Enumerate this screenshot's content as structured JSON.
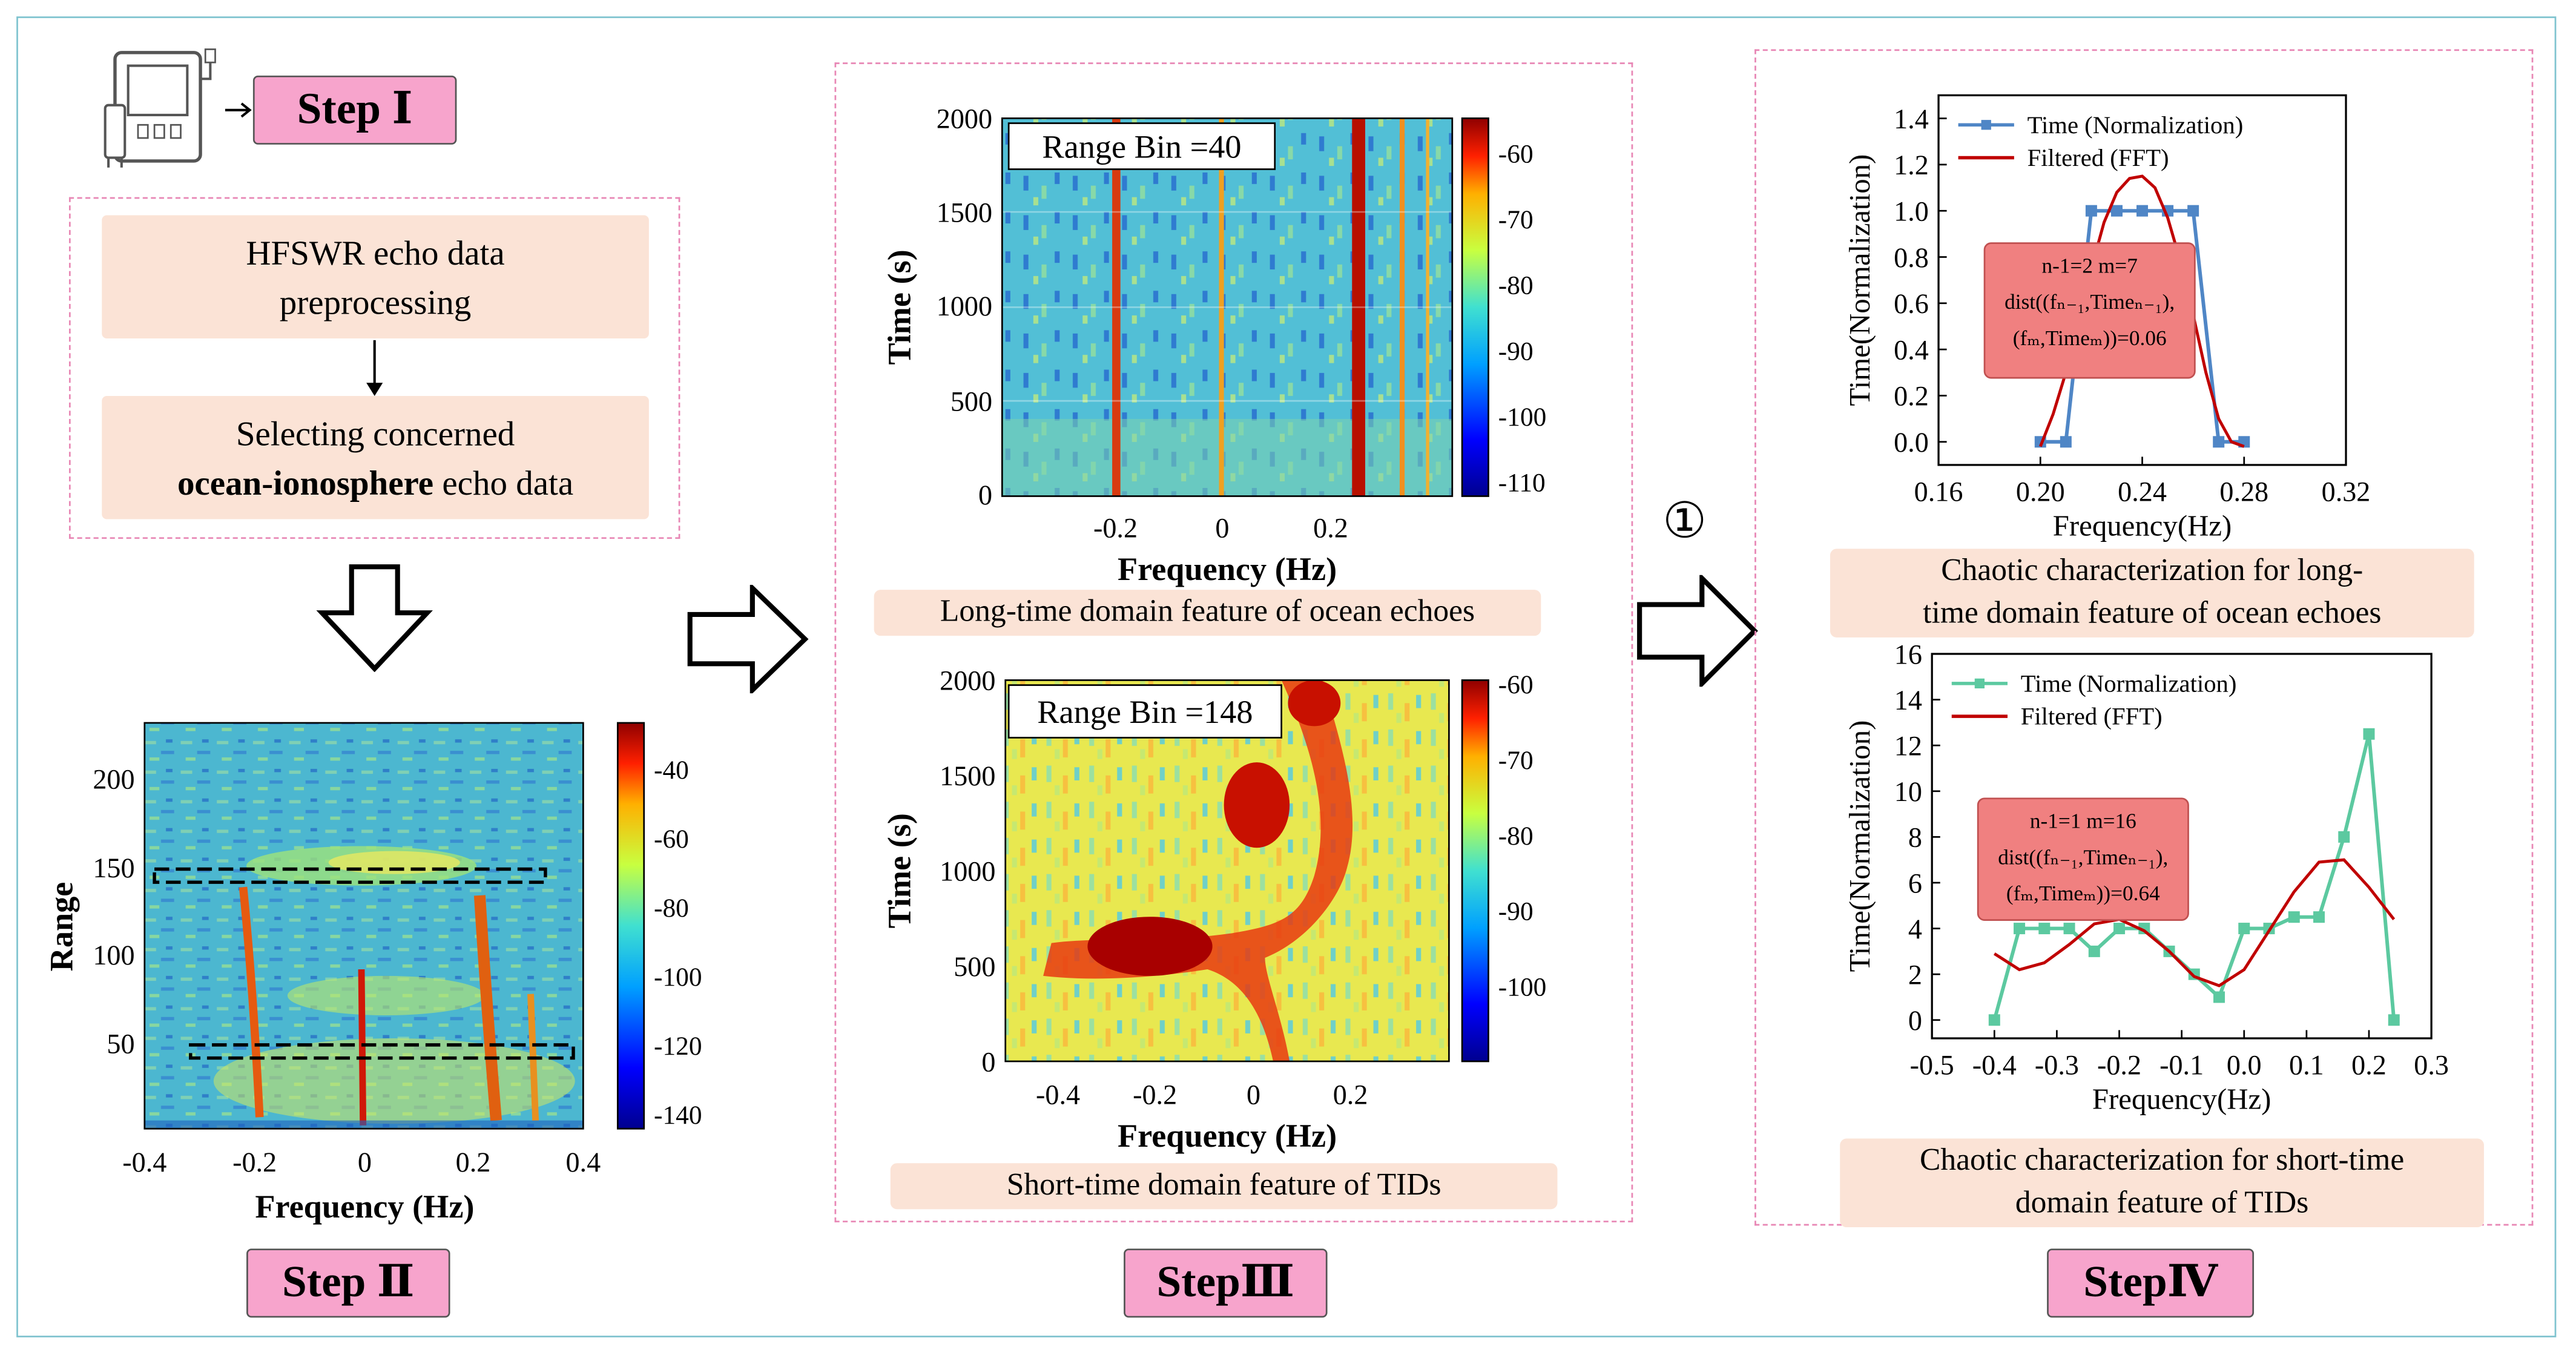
{
  "step1": {
    "label": "Step Ⅰ"
  },
  "step2": {
    "label": "Step Ⅱ"
  },
  "step3": {
    "label": "StepⅢ"
  },
  "step4": {
    "label": "StepⅣ"
  },
  "preprocess": {
    "box1": {
      "line1": "HFSWR echo data",
      "line2": "preprocessing"
    },
    "box2": {
      "line1": "Selecting concerned",
      "line2_bold": "ocean-ionosphere",
      "line2_rest": " echo data"
    }
  },
  "circled_marker": "①",
  "colors": {
    "pink_step": "#f7a4cc",
    "peach": "#fbe3d6",
    "dash": "#e887b5",
    "blue_series": "#4f86c6",
    "green_series": "#5cc9a0",
    "red_fit": "#c00000"
  },
  "icons": {
    "device": "radar-device-icon",
    "arrow": "arrow-right-icon"
  },
  "range_map": {
    "xlabel": "Frequency (Hz)",
    "ylabel": "Range",
    "xticks": [
      "-0.4",
      "-0.2",
      "0",
      "0.2",
      "0.4"
    ],
    "yticks": [
      "50",
      "100",
      "150",
      "200"
    ],
    "colorbar_ticks": [
      "-40",
      "-60",
      "-80",
      "-100",
      "-120",
      "-140"
    ]
  },
  "stft_ocean": {
    "title": "Range Bin =40",
    "xlabel": "Frequency (Hz)",
    "ylabel": "Time (s)",
    "xticks": [
      "-0.2",
      "0",
      "0.2"
    ],
    "yticks": [
      "0",
      "500",
      "1000",
      "1500",
      "2000"
    ],
    "colorbar_ticks": [
      "-60",
      "-70",
      "-80",
      "-90",
      "-100",
      "-110"
    ],
    "caption": "Long-time domain feature of ocean echoes"
  },
  "stft_tid": {
    "title": "Range Bin =148",
    "xlabel": "Frequency (Hz)",
    "ylabel": "Time (s)",
    "xticks": [
      "-0.4",
      "-0.2",
      "0",
      "0.2"
    ],
    "yticks": [
      "0",
      "500",
      "1000",
      "1500",
      "2000"
    ],
    "colorbar_ticks": [
      "-60",
      "-70",
      "-80",
      "-90",
      "-100"
    ],
    "caption": "Short-time domain feature of TIDs"
  },
  "chart_data": [
    {
      "type": "line",
      "id": "ocean_chaos",
      "xlabel": "Frequency(Hz)",
      "ylabel": "Time(Normalization)",
      "xlim": [
        0.16,
        0.32
      ],
      "ylim": [
        -0.1,
        1.5
      ],
      "xticks": [
        "0.16",
        "0.20",
        "0.24",
        "0.28",
        "0.32"
      ],
      "yticks": [
        "0.0",
        "0.2",
        "0.4",
        "0.6",
        "0.8",
        "1.0",
        "1.2",
        "1.4"
      ],
      "legend_position": "top-left",
      "series": [
        {
          "name": "Time (Normalization)",
          "x": [
            0.2,
            0.21,
            0.22,
            0.23,
            0.24,
            0.25,
            0.26,
            0.27,
            0.28
          ],
          "values": [
            0,
            0,
            1,
            1,
            1,
            1,
            1,
            0,
            0
          ]
        },
        {
          "name": "Filtered (FFT)",
          "x": [
            0.2,
            0.205,
            0.21,
            0.215,
            0.22,
            0.225,
            0.23,
            0.235,
            0.24,
            0.245,
            0.25,
            0.255,
            0.26,
            0.265,
            0.27,
            0.275,
            0.28
          ],
          "values": [
            -0.02,
            0.12,
            0.3,
            0.52,
            0.75,
            0.95,
            1.08,
            1.14,
            1.15,
            1.1,
            0.97,
            0.78,
            0.55,
            0.3,
            0.1,
            0.0,
            -0.02
          ]
        }
      ],
      "annotation": {
        "line1": "n-1=2  m=7",
        "line2": "dist((fₙ₋₁,Timeₙ₋₁),",
        "line3": "(fₘ,Timeₘ))=0.06"
      },
      "caption": {
        "line1": "Chaotic characterization for long-",
        "line2": "time domain feature of ocean echoes"
      }
    },
    {
      "type": "line",
      "id": "tid_chaos",
      "xlabel": "Frequency(Hz)",
      "ylabel": "Time(Normalization)",
      "xlim": [
        -0.5,
        0.3
      ],
      "ylim": [
        -0.8,
        16
      ],
      "xticks": [
        "-0.5",
        "-0.4",
        "-0.3",
        "-0.2",
        "-0.1",
        "0.0",
        "0.1",
        "0.2",
        "0.3"
      ],
      "yticks": [
        "0",
        "2",
        "4",
        "6",
        "8",
        "10",
        "12",
        "14",
        "16"
      ],
      "legend_position": "top-left",
      "series": [
        {
          "name": "Time (Normalization)",
          "x": [
            -0.4,
            -0.36,
            -0.32,
            -0.28,
            -0.24,
            -0.2,
            -0.16,
            -0.12,
            -0.08,
            -0.04,
            0.0,
            0.04,
            0.08,
            0.12,
            0.16,
            0.2,
            0.24
          ],
          "values": [
            0,
            4,
            4,
            4,
            3,
            4,
            4,
            3,
            2,
            1,
            4,
            4,
            4.5,
            4.5,
            8,
            12.5,
            0
          ]
        },
        {
          "name": "Filtered (FFT)",
          "x": [
            -0.4,
            -0.36,
            -0.32,
            -0.28,
            -0.24,
            -0.2,
            -0.16,
            -0.12,
            -0.08,
            -0.04,
            0.0,
            0.04,
            0.08,
            0.12,
            0.16,
            0.2,
            0.24
          ],
          "values": [
            2.9,
            2.2,
            2.5,
            3.3,
            4.2,
            4.4,
            3.9,
            3.0,
            1.9,
            1.5,
            2.2,
            3.9,
            5.6,
            6.9,
            7.0,
            5.8,
            4.4
          ]
        }
      ],
      "annotation": {
        "line1": "n-1=1  m=16",
        "line2": "dist((fₙ₋₁,Timeₙ₋₁),",
        "line3": "(fₘ,Timeₘ))=0.64"
      },
      "caption": {
        "line1": "Chaotic characterization for short-time",
        "line2": "domain feature of TIDs"
      }
    }
  ]
}
